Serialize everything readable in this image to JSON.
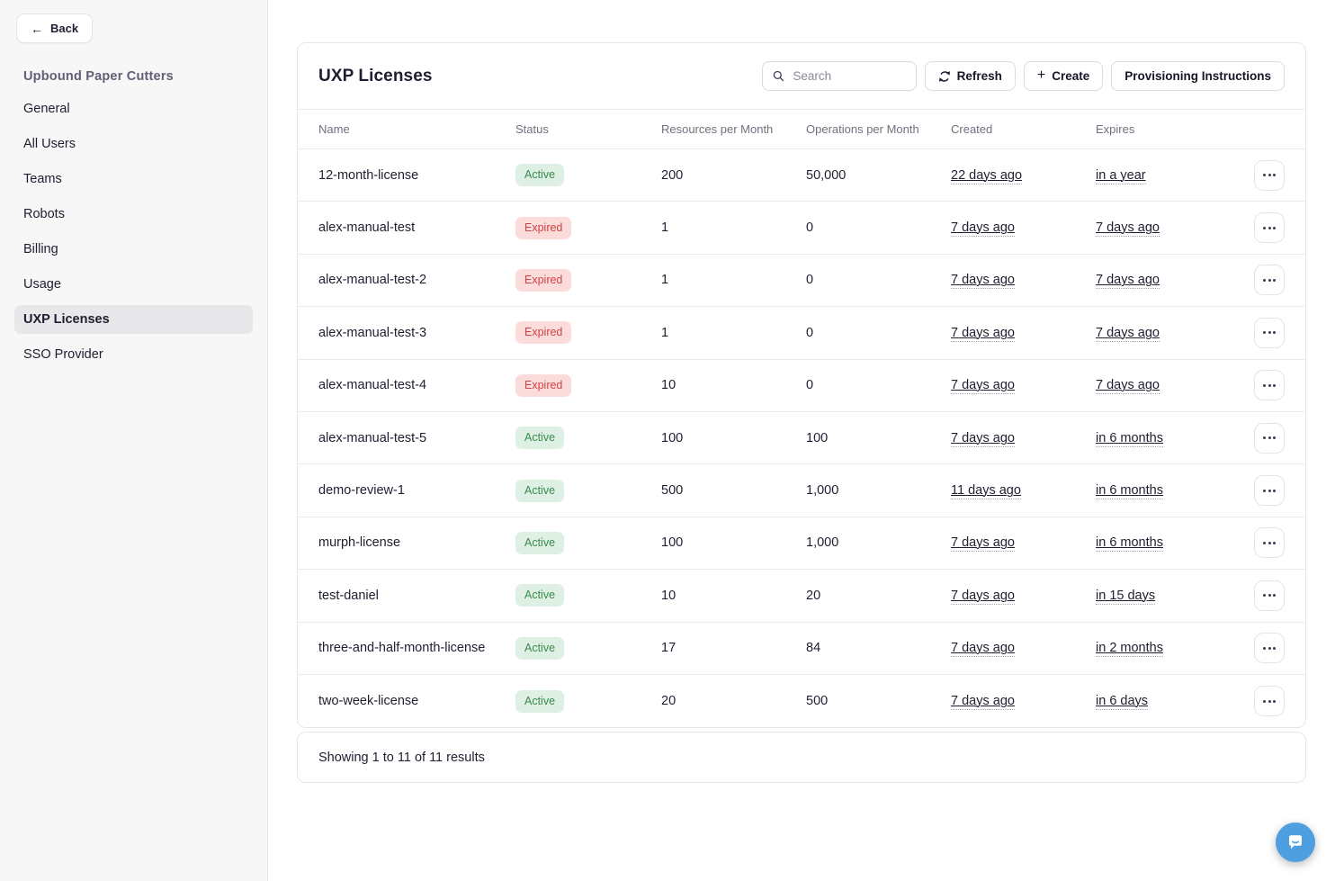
{
  "sidebar": {
    "back_label": "Back",
    "org_name": "Upbound Paper Cutters",
    "items": [
      {
        "label": "General",
        "active": false
      },
      {
        "label": "All Users",
        "active": false
      },
      {
        "label": "Teams",
        "active": false
      },
      {
        "label": "Robots",
        "active": false
      },
      {
        "label": "Billing",
        "active": false
      },
      {
        "label": "Usage",
        "active": false
      },
      {
        "label": "UXP Licenses",
        "active": true
      },
      {
        "label": "SSO Provider",
        "active": false
      }
    ]
  },
  "main": {
    "title": "UXP Licenses",
    "search_placeholder": "Search",
    "buttons": {
      "refresh": "Refresh",
      "create": "Create",
      "provisioning": "Provisioning Instructions"
    },
    "table": {
      "columns": [
        "Name",
        "Status",
        "Resources per Month",
        "Operations per Month",
        "Created",
        "Expires"
      ],
      "rows": [
        {
          "name": "12-month-license",
          "status": "Active",
          "resources": "200",
          "operations": "50,000",
          "created": "22 days ago",
          "expires": "in a year"
        },
        {
          "name": "alex-manual-test",
          "status": "Expired",
          "resources": "1",
          "operations": "0",
          "created": "7 days ago",
          "expires": "7 days ago"
        },
        {
          "name": "alex-manual-test-2",
          "status": "Expired",
          "resources": "1",
          "operations": "0",
          "created": "7 days ago",
          "expires": "7 days ago"
        },
        {
          "name": "alex-manual-test-3",
          "status": "Expired",
          "resources": "1",
          "operations": "0",
          "created": "7 days ago",
          "expires": "7 days ago"
        },
        {
          "name": "alex-manual-test-4",
          "status": "Expired",
          "resources": "10",
          "operations": "0",
          "created": "7 days ago",
          "expires": "7 days ago"
        },
        {
          "name": "alex-manual-test-5",
          "status": "Active",
          "resources": "100",
          "operations": "100",
          "created": "7 days ago",
          "expires": "in 6 months"
        },
        {
          "name": "demo-review-1",
          "status": "Active",
          "resources": "500",
          "operations": "1,000",
          "created": "11 days ago",
          "expires": "in 6 months"
        },
        {
          "name": "murph-license",
          "status": "Active",
          "resources": "100",
          "operations": "1,000",
          "created": "7 days ago",
          "expires": "in 6 months"
        },
        {
          "name": "test-daniel",
          "status": "Active",
          "resources": "10",
          "operations": "20",
          "created": "7 days ago",
          "expires": "in 15 days"
        },
        {
          "name": "three-and-half-month-license",
          "status": "Active",
          "resources": "17",
          "operations": "84",
          "created": "7 days ago",
          "expires": "in 2 months"
        },
        {
          "name": "two-week-license",
          "status": "Active",
          "resources": "20",
          "operations": "500",
          "created": "7 days ago",
          "expires": "in 6 days"
        }
      ],
      "footer": "Showing 1 to 11 of 11 results"
    }
  },
  "colors": {
    "active_badge_bg": "#def0e3",
    "active_badge_text": "#3a8a4f",
    "expired_badge_bg": "#fcdbdb",
    "expired_badge_text": "#d04444",
    "chat_bubble": "#4d9fe2",
    "sidebar_bg": "#f7f7f8",
    "selected_item_bg": "#e8e8ea"
  }
}
